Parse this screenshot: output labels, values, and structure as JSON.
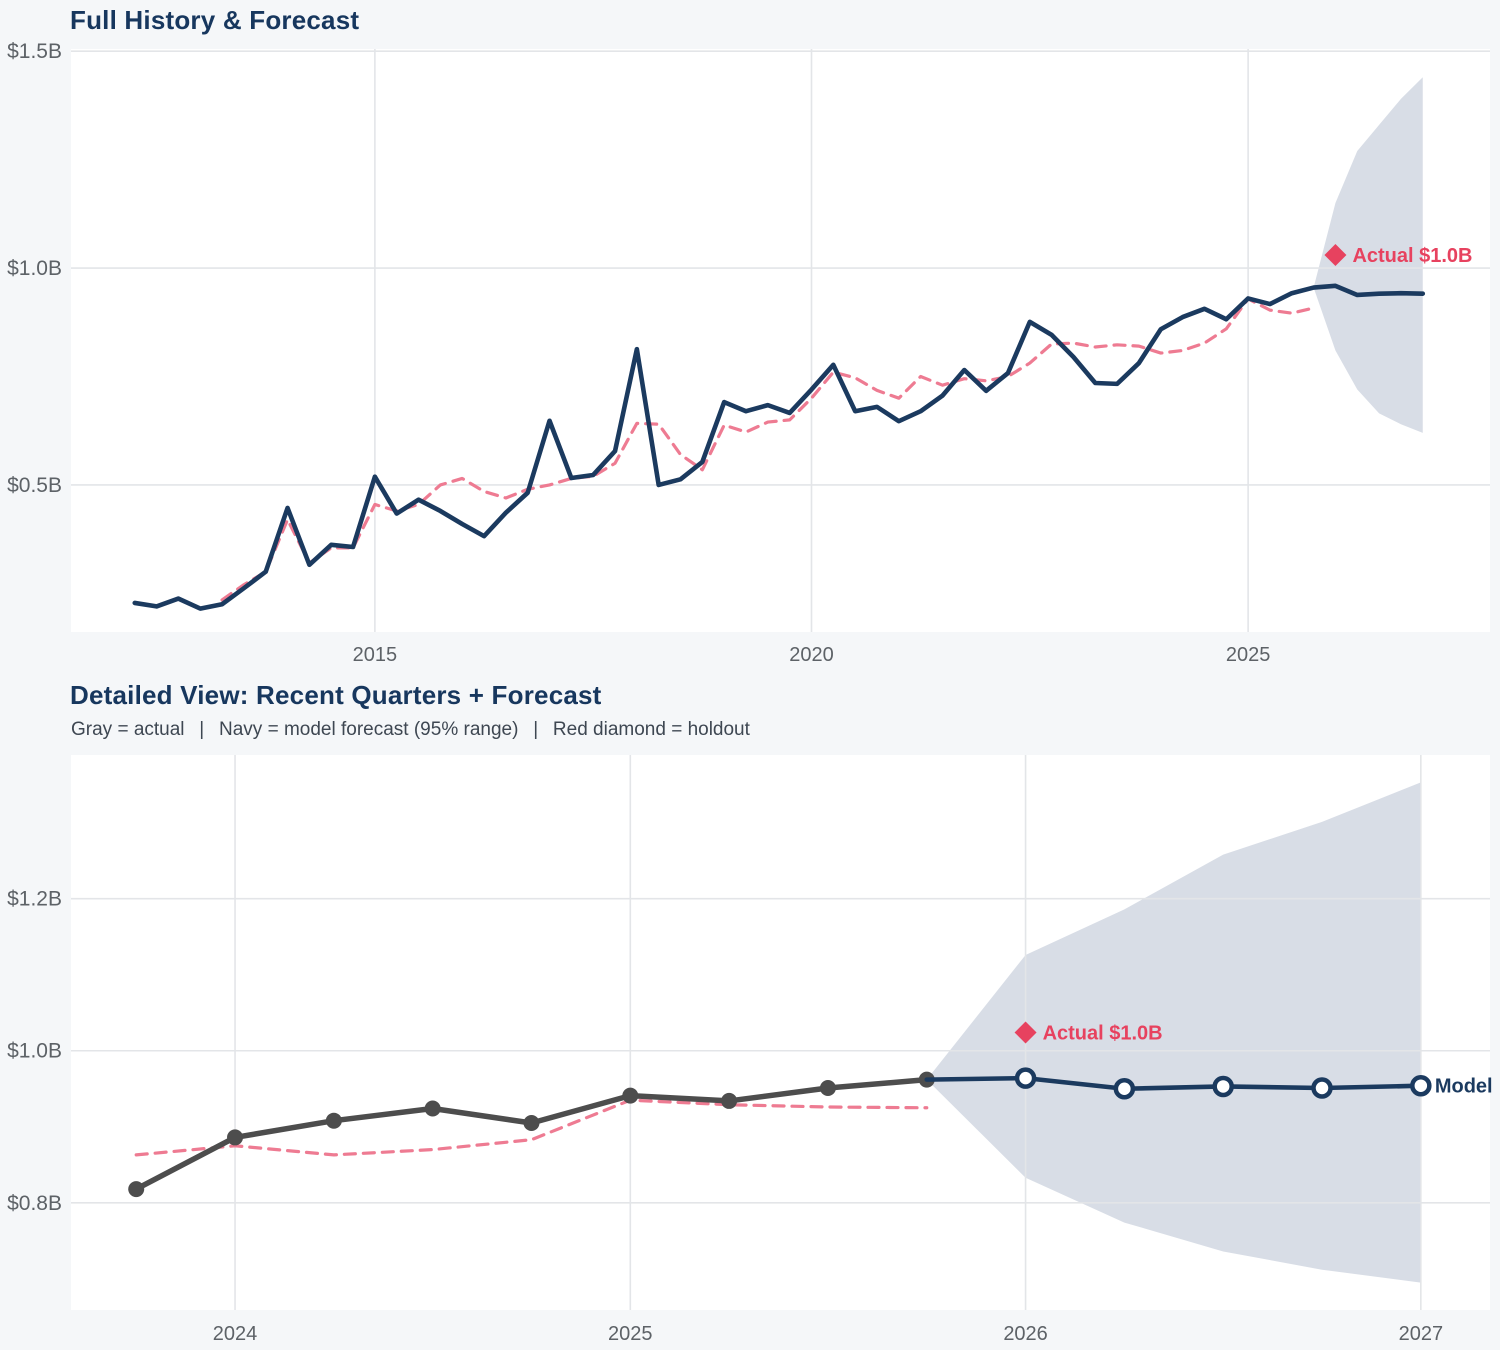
{
  "palette": {
    "navy": "#1b3a5f",
    "pink_dashed": "#ee7b92",
    "crimson": "#e7425f",
    "band_fill": "#d8dde6",
    "gray_actual": "#4d4d4d",
    "grid": "#e3e5e8",
    "tick_text": "#5d6267",
    "title_navy": "#17375e",
    "page_bg": "#f5f7f9",
    "plot_bg": "#ffffff"
  },
  "chart_data": [
    {
      "type": "line",
      "title": "Full History & Forecast",
      "xlabel": "",
      "ylabel": "",
      "x_range": [
        2011.52,
        2027.77
      ],
      "y_range": [
        0.161,
        1.505
      ],
      "grid": true,
      "legend_position": "none",
      "plot_bg": "#ffffff",
      "grid_color": "#e3e5e8",
      "tick_color": "#5d6267",
      "x_ticks": [
        {
          "v": 2015,
          "label": "2015"
        },
        {
          "v": 2020,
          "label": "2020"
        },
        {
          "v": 2025,
          "label": "2025"
        }
      ],
      "y_ticks": [
        {
          "v": 0.5,
          "label": "$0.5B"
        },
        {
          "v": 1.0,
          "label": "$1.0B"
        },
        {
          "v": 1.5,
          "label": "$1.5B"
        }
      ],
      "series": [
        {
          "name": "forecast-95-band",
          "type": "band",
          "color": "#d8dde6",
          "x": [
            2025.75,
            2026,
            2026.25,
            2026.5,
            2026.75,
            2027
          ],
          "upper": [
            0.955,
            1.15,
            1.27,
            1.33,
            1.39,
            1.44
          ],
          "lower": [
            0.955,
            0.81,
            0.72,
            0.665,
            0.64,
            0.62
          ]
        },
        {
          "name": "seasonal-model",
          "type": "line",
          "color": "#ee7b92",
          "width": 3.2,
          "dash": "11 8",
          "x": [
            2013.25,
            2013.5,
            2013.75,
            2014,
            2014.25,
            2014.5,
            2014.75,
            2015,
            2015.25,
            2015.5,
            2015.75,
            2016,
            2016.25,
            2016.5,
            2016.75,
            2017,
            2017.25,
            2017.5,
            2017.75,
            2018,
            2018.25,
            2018.5,
            2018.75,
            2019,
            2019.25,
            2019.5,
            2019.75,
            2020,
            2020.25,
            2020.5,
            2020.75,
            2021,
            2021.25,
            2021.5,
            2021.75,
            2022,
            2022.25,
            2022.5,
            2022.75,
            2023,
            2023.25,
            2023.5,
            2023.75,
            2024,
            2024.25,
            2024.5,
            2024.75,
            2025,
            2025.25,
            2025.5,
            2025.75
          ],
          "y": [
            0.235,
            0.27,
            0.3,
            0.42,
            0.32,
            0.355,
            0.355,
            0.455,
            0.44,
            0.455,
            0.5,
            0.515,
            0.485,
            0.47,
            0.49,
            0.5,
            0.515,
            0.52,
            0.55,
            0.642,
            0.64,
            0.57,
            0.535,
            0.638,
            0.622,
            0.645,
            0.65,
            0.7,
            0.76,
            0.747,
            0.718,
            0.7,
            0.75,
            0.73,
            0.745,
            0.74,
            0.75,
            0.781,
            0.825,
            0.827,
            0.818,
            0.823,
            0.82,
            0.804,
            0.81,
            0.827,
            0.86,
            0.929,
            0.903,
            0.896,
            0.908
          ]
        },
        {
          "name": "actual-and-forecast",
          "type": "line",
          "color": "#1b3a5f",
          "width": 4.6,
          "x": [
            2012.25,
            2012.5,
            2012.75,
            2013,
            2013.25,
            2013.5,
            2013.75,
            2014,
            2014.25,
            2014.5,
            2014.75,
            2015,
            2015.25,
            2015.5,
            2015.75,
            2016,
            2016.25,
            2016.5,
            2016.75,
            2017,
            2017.25,
            2017.5,
            2017.75,
            2018,
            2018.25,
            2018.5,
            2018.75,
            2019,
            2019.25,
            2019.5,
            2019.75,
            2020,
            2020.25,
            2020.5,
            2020.75,
            2021,
            2021.25,
            2021.5,
            2021.75,
            2022,
            2022.25,
            2022.5,
            2022.75,
            2023,
            2023.25,
            2023.5,
            2023.75,
            2024,
            2024.25,
            2024.5,
            2024.75,
            2025,
            2025.25,
            2025.5,
            2025.75,
            2026,
            2026.25,
            2026.5,
            2026.75,
            2027
          ],
          "y": [
            0.228,
            0.22,
            0.238,
            0.215,
            0.225,
            0.262,
            0.3,
            0.447,
            0.316,
            0.362,
            0.357,
            0.519,
            0.434,
            0.466,
            0.44,
            0.41,
            0.382,
            0.436,
            0.482,
            0.648,
            0.516,
            0.523,
            0.578,
            0.813,
            0.5,
            0.513,
            0.553,
            0.691,
            0.67,
            0.684,
            0.666,
            0.72,
            0.777,
            0.67,
            0.68,
            0.647,
            0.67,
            0.706,
            0.765,
            0.717,
            0.758,
            0.876,
            0.846,
            0.795,
            0.735,
            0.733,
            0.781,
            0.859,
            0.887,
            0.906,
            0.882,
            0.93,
            0.917,
            0.942,
            0.955,
            0.959,
            0.938,
            0.941,
            0.942,
            0.941
          ]
        }
      ],
      "annotations": [
        {
          "name": "holdout",
          "shape": "diamond",
          "x": 2026.0,
          "y": 1.03,
          "size": 11,
          "color": "#e7425f",
          "label": "Actual $1.0B"
        }
      ]
    },
    {
      "type": "line",
      "title": "Detailed View: Recent Quarters + Forecast",
      "subtitle": "Gray = actual  |  Navy = model forecast (95% range)  |  Red diamond = holdout",
      "xlabel": "",
      "ylabel": "",
      "x_range": [
        2023.585,
        2027.175
      ],
      "y_range": [
        0.659,
        1.389
      ],
      "grid": true,
      "legend_position": "none",
      "plot_bg": "#ffffff",
      "grid_color": "#e3e5e8",
      "tick_color": "#5d6267",
      "x_ticks": [
        {
          "v": 2024,
          "label": "2024"
        },
        {
          "v": 2025,
          "label": "2025"
        },
        {
          "v": 2026,
          "label": "2026"
        },
        {
          "v": 2027,
          "label": "2027"
        }
      ],
      "y_ticks": [
        {
          "v": 0.8,
          "label": "$0.8B"
        },
        {
          "v": 1.0,
          "label": "$1.0B"
        },
        {
          "v": 1.2,
          "label": "$1.2B"
        }
      ],
      "series": [
        {
          "name": "forecast-95-band",
          "type": "band",
          "color": "#d8dde6",
          "x": [
            2025.75,
            2026,
            2026.25,
            2026.5,
            2026.75,
            2027
          ],
          "upper": [
            0.962,
            1.126,
            1.186,
            1.258,
            1.301,
            1.353
          ],
          "lower": [
            0.962,
            0.833,
            0.774,
            0.736,
            0.712,
            0.695
          ]
        },
        {
          "name": "seasonal-model",
          "type": "line",
          "color": "#ee7b92",
          "width": 3.2,
          "dash": "11 8",
          "x": [
            2023.75,
            2024,
            2024.25,
            2024.5,
            2024.75,
            2025,
            2025.25,
            2025.5,
            2025.75
          ],
          "y": [
            0.863,
            0.875,
            0.863,
            0.87,
            0.883,
            0.935,
            0.929,
            0.926,
            0.925
          ]
        },
        {
          "name": "actual",
          "type": "line",
          "color": "#4d4d4d",
          "width": 5.5,
          "markers": "dot",
          "marker_r": 8,
          "x": [
            2023.75,
            2024,
            2024.25,
            2024.5,
            2024.75,
            2025,
            2025.25,
            2025.5,
            2025.75
          ],
          "y": [
            0.818,
            0.886,
            0.908,
            0.924,
            0.905,
            0.941,
            0.934,
            0.951,
            0.962
          ]
        },
        {
          "name": "model-forecast",
          "type": "line",
          "color": "#1b3a5f",
          "width": 4.6,
          "markers": "open",
          "marker_r": 8.5,
          "end_label": "Model",
          "x": [
            2025.75,
            2026,
            2026.25,
            2026.5,
            2026.75,
            2027
          ],
          "y": [
            0.962,
            0.964,
            0.95,
            0.953,
            0.951,
            0.954
          ]
        }
      ],
      "annotations": [
        {
          "name": "holdout",
          "shape": "diamond",
          "x": 2026.0,
          "y": 1.024,
          "size": 11,
          "color": "#e7425f",
          "label": "Actual $1.0B"
        }
      ]
    }
  ]
}
